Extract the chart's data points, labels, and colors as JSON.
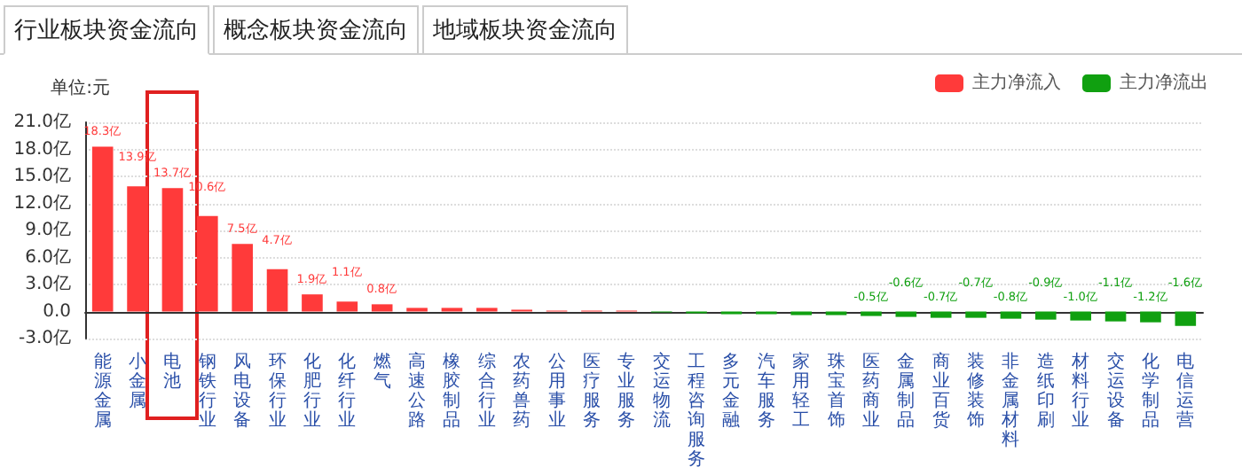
{
  "chart_data": {
    "type": "bar",
    "ylabel": "单位:元",
    "annotations": [
      "行业板块资金流向",
      "概念板块资金流向",
      "地域板块资金流向"
    ],
    "categories": [
      "能源金属",
      "小金属",
      "电池",
      "钢铁行业",
      "风电设备",
      "环保行业",
      "化肥行业",
      "化纤行业",
      "燃气",
      "高速公路",
      "橡胶制品",
      "综合行业",
      "农药兽药",
      "公用事业",
      "医疗服务",
      "专业服务",
      "交运物流",
      "工程咨询服务",
      "多元金融",
      "汽车服务",
      "家用轻工",
      "珠宝首饰",
      "医药商业",
      "金属制品",
      "商业百货",
      "装修装饰",
      "非金属材料",
      "造纸印刷",
      "材料行业",
      "交运设备",
      "化学制品",
      "电信运营"
    ],
    "series": [
      {
        "name": "主力净流入",
        "color": "#ff3a3a",
        "values": [
          18.3,
          13.9,
          13.7,
          10.6,
          7.5,
          4.7,
          1.9,
          1.1,
          0.8,
          0.4,
          0.4,
          0.4,
          0.2,
          0.1,
          0.1,
          0.1,
          null,
          null,
          null,
          null,
          null,
          null,
          null,
          null,
          null,
          null,
          null,
          null,
          null,
          null,
          null,
          null
        ],
        "value_labels": [
          "18.3亿",
          "13.9亿",
          "13.7亿",
          "10.6亿",
          "7.5亿",
          "4.7亿",
          "1.9亿",
          "1.1亿",
          "0.8亿",
          null,
          null,
          null,
          null,
          null,
          null,
          null,
          null,
          null,
          null,
          null,
          null,
          null,
          null,
          null,
          null,
          null,
          null,
          null,
          null,
          null,
          null,
          null
        ]
      },
      {
        "name": "主力净流出",
        "color": "#10a010",
        "values": [
          null,
          null,
          null,
          null,
          null,
          null,
          null,
          null,
          null,
          null,
          null,
          null,
          null,
          null,
          null,
          null,
          -0.1,
          -0.2,
          -0.3,
          -0.3,
          -0.4,
          -0.4,
          -0.5,
          -0.6,
          -0.7,
          -0.7,
          -0.8,
          -0.9,
          -1.0,
          -1.1,
          -1.2,
          -1.6
        ],
        "value_labels": [
          null,
          null,
          null,
          null,
          null,
          null,
          null,
          null,
          null,
          null,
          null,
          null,
          null,
          null,
          null,
          null,
          null,
          null,
          null,
          null,
          null,
          null,
          "-0.5亿",
          "-0.6亿",
          "-0.7亿",
          "-0.7亿",
          "-0.8亿",
          "-0.9亿",
          "-1.0亿",
          "-1.1亿",
          "-1.2亿",
          "-1.6亿"
        ]
      }
    ],
    "ylim": [
      -3,
      21
    ],
    "yticks": [
      {
        "value": -3,
        "label": "-3.0亿"
      },
      {
        "value": 0,
        "label": "0.0"
      },
      {
        "value": 3,
        "label": "3.0亿"
      },
      {
        "value": 6,
        "label": "6.0亿"
      },
      {
        "value": 9,
        "label": "9.0亿"
      },
      {
        "value": 12,
        "label": "12.0亿"
      },
      {
        "value": 15,
        "label": "15.0亿"
      },
      {
        "value": 18,
        "label": "18.0亿"
      },
      {
        "value": 21,
        "label": "21.0亿"
      }
    ],
    "grid": "y",
    "legend": "top right"
  }
}
